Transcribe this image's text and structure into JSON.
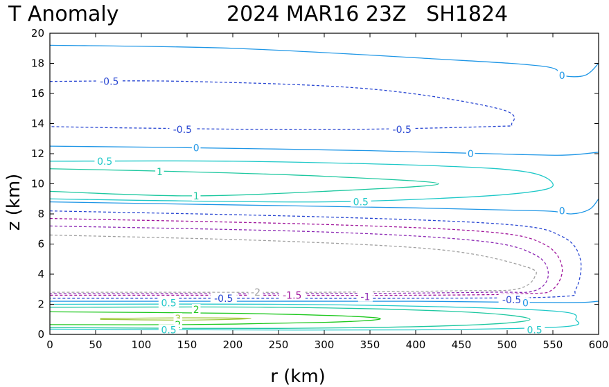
{
  "header": {
    "left_title": "T Anomaly",
    "right_title": "2024 MAR16 23Z   SH1824"
  },
  "chart_data": {
    "type": "contour",
    "title": "T Anomaly",
    "subtitle": "2024 MAR16 23Z   SH1824",
    "xlabel": "r (km)",
    "ylabel": "z (km)",
    "xlim": [
      0,
      600
    ],
    "ylim": [
      0,
      20
    ],
    "xticks": [
      0,
      50,
      100,
      150,
      200,
      250,
      300,
      350,
      400,
      450,
      500,
      550,
      600
    ],
    "yticks": [
      0,
      2,
      4,
      6,
      8,
      10,
      12,
      14,
      16,
      18,
      20
    ],
    "grid": false,
    "colors": {
      "3": "#a0c83c",
      "2": "#1ec81e",
      "1": "#1ec8a0",
      "0.5": "#1ec8c8",
      "0": "#1e96e6",
      "-0.5": "#2846d2",
      "-1": "#8c28b4",
      "-1.5": "#a0149b",
      "-2": "#a0a0a0"
    },
    "contours": [
      {
        "level": "0",
        "dashed": false,
        "points": [
          [
            0,
            19.2
          ],
          [
            200,
            19.0
          ],
          [
            420,
            18.3
          ],
          [
            540,
            17.8
          ],
          [
            560,
            17.2
          ],
          [
            585,
            17.2
          ],
          [
            600,
            18.0
          ]
        ]
      },
      {
        "level": "-0.5",
        "dashed": true,
        "points": [
          [
            0,
            16.8
          ],
          [
            150,
            16.8
          ],
          [
            350,
            16.3
          ],
          [
            490,
            15.0
          ],
          [
            505,
            14.0
          ],
          [
            480,
            13.8
          ],
          [
            300,
            13.6
          ],
          [
            100,
            13.7
          ],
          [
            0,
            13.8
          ]
        ]
      },
      {
        "level": "0",
        "dashed": false,
        "points": [
          [
            0,
            12.5
          ],
          [
            150,
            12.4
          ],
          [
            350,
            12.2
          ],
          [
            480,
            12.0
          ],
          [
            560,
            11.9
          ],
          [
            600,
            12.1
          ]
        ]
      },
      {
        "level": "0.5",
        "dashed": false,
        "points": [
          [
            0,
            11.5
          ],
          [
            200,
            11.5
          ],
          [
            420,
            11.2
          ],
          [
            520,
            10.8
          ],
          [
            550,
            10.0
          ],
          [
            530,
            9.5
          ],
          [
            450,
            9.1
          ],
          [
            300,
            8.8
          ],
          [
            100,
            8.9
          ],
          [
            0,
            9.0
          ]
        ]
      },
      {
        "level": "1",
        "dashed": false,
        "points": [
          [
            0,
            11.0
          ],
          [
            150,
            10.8
          ],
          [
            300,
            10.5
          ],
          [
            425,
            10.0
          ],
          [
            300,
            9.5
          ],
          [
            150,
            9.2
          ],
          [
            0,
            9.5
          ]
        ]
      },
      {
        "level": "0",
        "dashed": false,
        "points": [
          [
            0,
            8.8
          ],
          [
            200,
            8.6
          ],
          [
            400,
            8.4
          ],
          [
            540,
            8.2
          ],
          [
            570,
            8.0
          ],
          [
            590,
            8.3
          ],
          [
            600,
            9.0
          ]
        ]
      },
      {
        "level": "-0.5",
        "dashed": true,
        "points": [
          [
            0,
            8.2
          ],
          [
            300,
            7.8
          ],
          [
            500,
            7.3
          ],
          [
            560,
            6.5
          ],
          [
            580,
            5.0
          ],
          [
            575,
            3.0
          ],
          [
            555,
            2.5
          ],
          [
            400,
            2.4
          ],
          [
            200,
            2.4
          ],
          [
            0,
            2.4
          ]
        ]
      },
      {
        "level": "-1.5",
        "dashed": true,
        "points": [
          [
            0,
            7.7
          ],
          [
            300,
            7.3
          ],
          [
            480,
            6.8
          ],
          [
            540,
            6.0
          ],
          [
            560,
            4.5
          ],
          [
            550,
            3.0
          ],
          [
            520,
            2.7
          ],
          [
            400,
            2.6
          ],
          [
            200,
            2.6
          ],
          [
            0,
            2.6
          ]
        ]
      },
      {
        "level": "-1",
        "dashed": true,
        "points": [
          [
            0,
            7.2
          ],
          [
            300,
            6.8
          ],
          [
            470,
            6.2
          ],
          [
            530,
            5.3
          ],
          [
            545,
            4.0
          ],
          [
            530,
            2.9
          ],
          [
            480,
            2.8
          ],
          [
            300,
            2.7
          ],
          [
            100,
            2.7
          ],
          [
            0,
            2.7
          ]
        ]
      },
      {
        "level": "-2",
        "dashed": true,
        "points": [
          [
            0,
            6.6
          ],
          [
            250,
            6.2
          ],
          [
            430,
            5.6
          ],
          [
            520,
            4.5
          ],
          [
            530,
            3.8
          ],
          [
            510,
            3.0
          ],
          [
            450,
            2.9
          ],
          [
            300,
            2.8
          ],
          [
            100,
            2.8
          ],
          [
            0,
            2.8
          ]
        ]
      },
      {
        "level": "0",
        "dashed": false,
        "points": [
          [
            0,
            2.2
          ],
          [
            200,
            2.2
          ],
          [
            400,
            2.2
          ],
          [
            560,
            2.1
          ],
          [
            600,
            2.2
          ]
        ]
      },
      {
        "level": "0.5",
        "dashed": false,
        "points": [
          [
            0,
            2.0
          ],
          [
            250,
            2.0
          ],
          [
            450,
            1.8
          ],
          [
            560,
            1.5
          ],
          [
            575,
            1.0
          ],
          [
            560,
            0.5
          ],
          [
            400,
            0.3
          ],
          [
            200,
            0.3
          ],
          [
            0,
            0.35
          ]
        ]
      },
      {
        "level": "1",
        "dashed": false,
        "points": [
          [
            0,
            1.8
          ],
          [
            250,
            1.8
          ],
          [
            450,
            1.5
          ],
          [
            525,
            1.0
          ],
          [
            450,
            0.6
          ],
          [
            250,
            0.4
          ],
          [
            0,
            0.45
          ]
        ]
      },
      {
        "level": "2",
        "dashed": false,
        "points": [
          [
            0,
            1.5
          ],
          [
            200,
            1.4
          ],
          [
            330,
            1.2
          ],
          [
            360,
            1.0
          ],
          [
            300,
            0.8
          ],
          [
            150,
            0.65
          ],
          [
            0,
            0.65
          ]
        ]
      },
      {
        "level": "3",
        "dashed": false,
        "points": [
          [
            55,
            1.05
          ],
          [
            150,
            1.1
          ],
          [
            220,
            1.05
          ],
          [
            150,
            0.95
          ],
          [
            55,
            1.0
          ]
        ]
      }
    ],
    "labels": [
      {
        "text": "0",
        "x": 560,
        "y": 17.2,
        "level": "0"
      },
      {
        "text": "-0.5",
        "x": 65,
        "y": 16.8,
        "level": "-0.5"
      },
      {
        "text": "-0.5",
        "x": 145,
        "y": 13.6,
        "level": "-0.5"
      },
      {
        "text": "-0.5",
        "x": 385,
        "y": 13.6,
        "level": "-0.5"
      },
      {
        "text": "0",
        "x": 160,
        "y": 12.4,
        "level": "0"
      },
      {
        "text": "0",
        "x": 460,
        "y": 12.0,
        "level": "0"
      },
      {
        "text": "0.5",
        "x": 60,
        "y": 11.5,
        "level": "0.5"
      },
      {
        "text": "1",
        "x": 120,
        "y": 10.8,
        "level": "1"
      },
      {
        "text": "1",
        "x": 160,
        "y": 9.2,
        "level": "1"
      },
      {
        "text": "0.5",
        "x": 340,
        "y": 8.8,
        "level": "0.5"
      },
      {
        "text": "0",
        "x": 560,
        "y": 8.2,
        "level": "0"
      },
      {
        "text": "-2",
        "x": 225,
        "y": 2.8,
        "level": "-2"
      },
      {
        "text": "-1.5",
        "x": 265,
        "y": 2.6,
        "level": "-1.5"
      },
      {
        "text": "-0.5",
        "x": 190,
        "y": 2.4,
        "level": "-0.5"
      },
      {
        "text": "-1",
        "x": 345,
        "y": 2.5,
        "level": "-1"
      },
      {
        "text": "-0.5",
        "x": 505,
        "y": 2.3,
        "level": "-0.5"
      },
      {
        "text": "0",
        "x": 520,
        "y": 2.1,
        "level": "0"
      },
      {
        "text": "0.5",
        "x": 130,
        "y": 2.1,
        "level": "0.5"
      },
      {
        "text": "2",
        "x": 160,
        "y": 1.65,
        "level": "2"
      },
      {
        "text": "3",
        "x": 140,
        "y": 1.05,
        "level": "3"
      },
      {
        "text": "2",
        "x": 140,
        "y": 0.65,
        "level": "2"
      },
      {
        "text": "0.5",
        "x": 130,
        "y": 0.3,
        "level": "0.5"
      },
      {
        "text": "0.5",
        "x": 530,
        "y": 0.3,
        "level": "0.5"
      }
    ]
  }
}
